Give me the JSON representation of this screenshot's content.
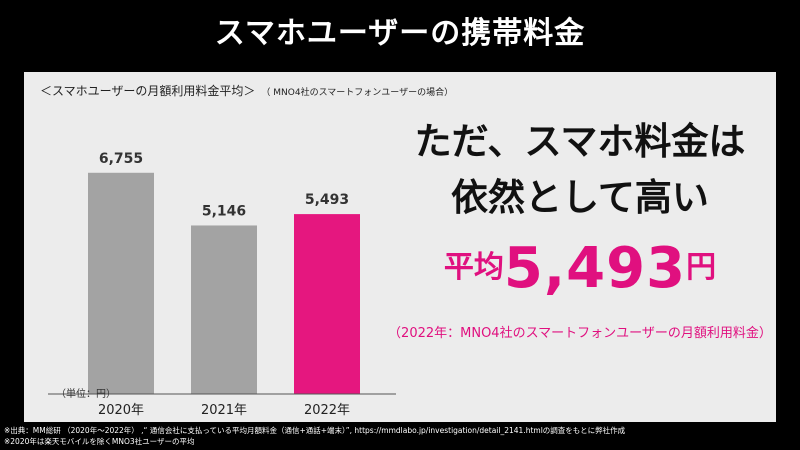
{
  "title": "スマホユーザーの携帯料金",
  "chart_data": {
    "type": "bar",
    "title": "＜スマホユーザーの月額利用料金平均＞",
    "subtitle": "（ MNO4社のスマートフォンユーザーの場合）",
    "categories": [
      "2020年",
      "2021年",
      "2022年"
    ],
    "values": [
      6755,
      5146,
      5493
    ],
    "value_labels": [
      "6,755",
      "5,146",
      "5,493"
    ],
    "colors": [
      "#a3a3a3",
      "#a3a3a3",
      "#e5177f"
    ],
    "ylim": [
      0,
      8000
    ],
    "unit_note": "（単位：円）",
    "grid": false
  },
  "headline": {
    "line1": "ただ、スマホ料金は",
    "line2": "依然として高い"
  },
  "average": {
    "label": "平均",
    "value": "5,493",
    "unit": "円",
    "note": "（2022年：MNO4社のスマートフォンユーザーの月額利用料金）"
  },
  "footer": {
    "line1": "※出典：MM総研 （2020年～2022年） ,“ 通信会社に支払っている平均月額料金（通信+通話+端末）”, https://mmdlabo.jp/investigation/detail_2141.htmlの調査をもとに弊社作成",
    "line2": "※2020年は楽天モバイルを除くMNO3社ユーザーの平均"
  },
  "accent_color": "#e0107f"
}
